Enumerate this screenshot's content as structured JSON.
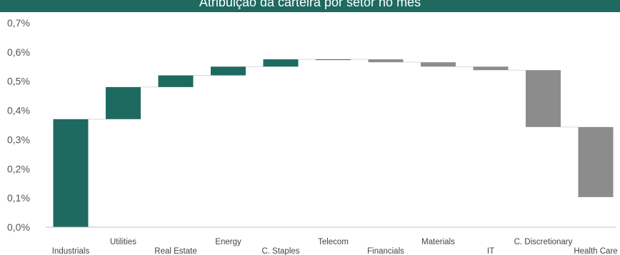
{
  "chart_data": {
    "type": "waterfall",
    "title": "Atribuição da carteira por setor no mês",
    "xlabel": "",
    "ylabel": "",
    "ylim": [
      0,
      0.7
    ],
    "yticks": [
      "0,0%",
      "0,1%",
      "0,2%",
      "0,3%",
      "0,4%",
      "0,5%",
      "0,6%",
      "0,7%"
    ],
    "grid": false,
    "legend": "none",
    "categories": [
      "Industrials",
      "Utilities",
      "Real Estate",
      "Energy",
      "C. Staples",
      "Telecom",
      "Financials",
      "Materials",
      "IT",
      "C. Discretionary",
      "Health Care"
    ],
    "values": [
      0.37,
      0.11,
      0.04,
      0.03,
      0.025,
      0.0,
      -0.01,
      -0.015,
      -0.012,
      -0.195,
      -0.24
    ],
    "unit": "%",
    "colors": {
      "positive": "#1f6a60",
      "negative": "#8c8c8c",
      "title_bar": "#1f6a60",
      "connector": "#d9d9d9",
      "axis": "#bfbfbf"
    }
  }
}
